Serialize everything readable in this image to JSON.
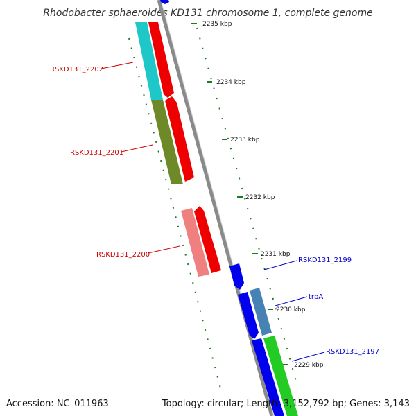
{
  "title": "Rhodobacter sphaeroides KD131 chromosome 1, complete genome",
  "footer": {
    "accession": "Accession: NC_011963",
    "topology": "Topology: circular; Length: 3,152,792 bp; Genes: 3,143"
  },
  "colors": {
    "backbone": "#8a8a8a",
    "tick": "#1e7a1e",
    "reverse_label": "#cc0000",
    "forward_label": "#0000cc"
  },
  "ticks": [
    "2235 kbp",
    "2234 kbp",
    "2233 kbp",
    "2232 kbp",
    "2231 kbp",
    "2230 kbp",
    "2229 kbp"
  ],
  "gene_labels": {
    "reverse": [
      "RSKD131_2202",
      "RSKD131_2201",
      "RSKD131_2200"
    ],
    "forward": [
      "RSKD131_2199",
      "trpA",
      "RSKD131_2197"
    ]
  }
}
